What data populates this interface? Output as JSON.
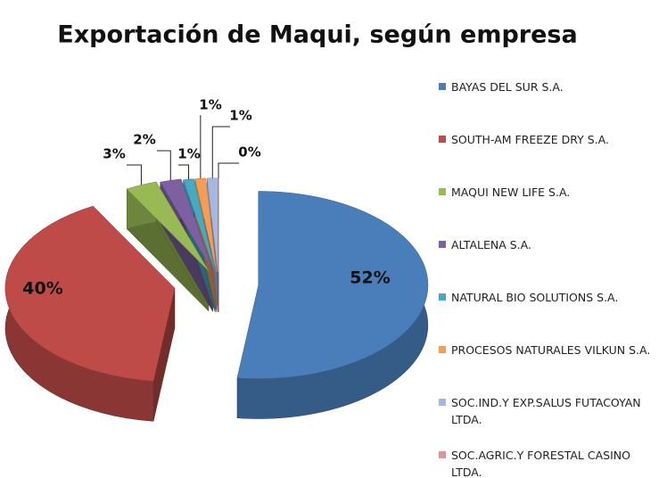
{
  "chart_data": {
    "type": "pie",
    "title": "Exportación de Maqui, según empresa",
    "categories": [
      "BAYAS DEL SUR S.A.",
      "SOUTH-AM FREEZE DRY S.A.",
      "MAQUI NEW LIFE S.A.",
      "ALTALENA S.A.",
      "NATURAL BIO SOLUTIONS S.A.",
      "PROCESOS NATURALES VILKUN S.A.",
      "SOC.IND.Y EXP.SALUS FUTACOYAN LTDA.",
      "SOC.AGRIC.Y FORESTAL CASINO LTDA."
    ],
    "values": [
      52,
      40,
      3,
      2,
      1,
      1,
      1,
      0
    ],
    "value_labels": [
      "52%",
      "40%",
      "3%",
      "2%",
      "1%",
      "1%",
      "1%",
      "0%"
    ],
    "colors": [
      "#4a7ebb",
      "#be4b48",
      "#98b954",
      "#7d60a0",
      "#46aac5",
      "#f59d56",
      "#a5b8e0",
      "#d99694"
    ],
    "legend": "right"
  }
}
